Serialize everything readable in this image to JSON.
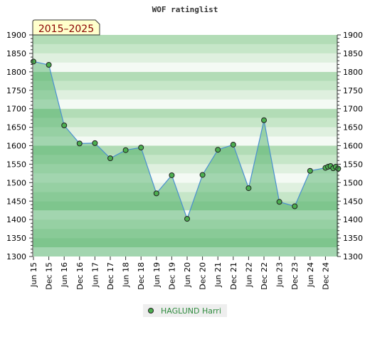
{
  "chart_data": {
    "type": "area",
    "title": "WOF ratinglist",
    "period_badge": "2015–2025",
    "ylim": [
      1300,
      1900
    ],
    "y_ticks": [
      1300,
      1350,
      1400,
      1450,
      1500,
      1550,
      1600,
      1650,
      1700,
      1750,
      1800,
      1850,
      1900
    ],
    "y_axis_both_sides": true,
    "grid": "horizontal bands",
    "x_tick_labels": [
      "Jun 15",
      "Dec 15",
      "Jun 16",
      "Dec 16",
      "Jun 17",
      "Dec 17",
      "Jun 18",
      "Dec 18",
      "Jun 19",
      "Dec 19",
      "Jun 20",
      "Dec 20",
      "Jun 21",
      "Dec 21",
      "Jun 22",
      "Dec 22",
      "Jun 23",
      "Dec 23",
      "Jun 24",
      "Dec 24"
    ],
    "legend_position": "bottom-center",
    "series": [
      {
        "name": "HAGLUND Harri",
        "color": "#2e8b3e",
        "points": [
          {
            "x": 0.0,
            "y": 1828
          },
          {
            "x": 1.0,
            "y": 1819
          },
          {
            "x": 2.0,
            "y": 1655
          },
          {
            "x": 3.0,
            "y": 1606
          },
          {
            "x": 4.0,
            "y": 1607
          },
          {
            "x": 5.0,
            "y": 1566
          },
          {
            "x": 6.0,
            "y": 1588
          },
          {
            "x": 7.0,
            "y": 1595
          },
          {
            "x": 8.0,
            "y": 1471
          },
          {
            "x": 9.0,
            "y": 1520
          },
          {
            "x": 10.0,
            "y": 1402
          },
          {
            "x": 11.0,
            "y": 1521
          },
          {
            "x": 12.0,
            "y": 1589
          },
          {
            "x": 13.0,
            "y": 1603
          },
          {
            "x": 14.0,
            "y": 1485
          },
          {
            "x": 15.0,
            "y": 1669
          },
          {
            "x": 16.0,
            "y": 1448
          },
          {
            "x": 17.0,
            "y": 1436
          },
          {
            "x": 18.0,
            "y": 1532
          },
          {
            "x": 19.0,
            "y": 1540
          },
          {
            "x": 19.17,
            "y": 1543
          },
          {
            "x": 19.33,
            "y": 1545
          },
          {
            "x": 19.5,
            "y": 1539
          },
          {
            "x": 19.67,
            "y": 1543
          },
          {
            "x": 19.83,
            "y": 1538
          }
        ]
      }
    ]
  }
}
